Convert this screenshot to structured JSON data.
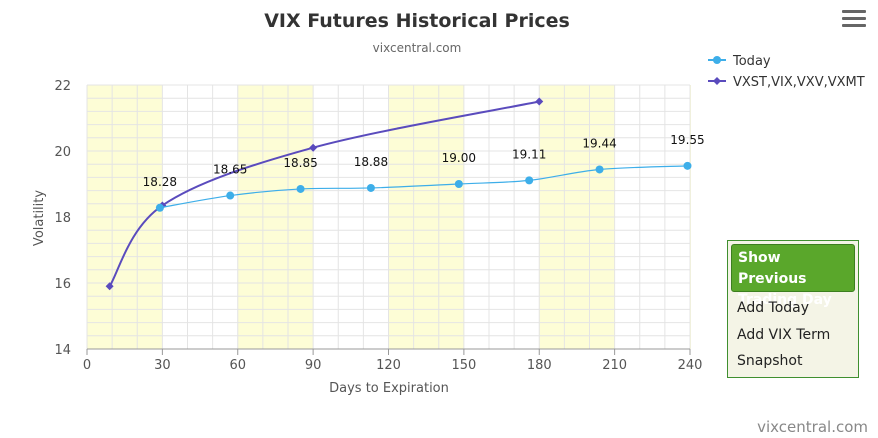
{
  "chart_data": {
    "type": "line",
    "title": "VIX Futures Historical Prices",
    "subtitle": "vixcentral.com",
    "xlabel": "Days to Expiration",
    "ylabel": "Volatility",
    "xlim": [
      0,
      240
    ],
    "ylim": [
      14,
      22
    ],
    "x_ticks": [
      0,
      30,
      60,
      90,
      120,
      150,
      180,
      210,
      240
    ],
    "y_ticks": [
      14,
      16,
      18,
      20,
      22
    ],
    "grid": true,
    "legend_position": "top-right",
    "shaded_bands": [
      [
        0,
        30
      ],
      [
        60,
        90
      ],
      [
        120,
        150
      ],
      [
        180,
        210
      ],
      [
        240,
        241
      ]
    ],
    "series": [
      {
        "name": "Today",
        "color": "#3daee9",
        "marker": "circle",
        "points": [
          {
            "x": 29,
            "y": 18.28,
            "label": "18.28"
          },
          {
            "x": 57,
            "y": 18.65,
            "label": "18.65"
          },
          {
            "x": 85,
            "y": 18.85,
            "label": "18.85"
          },
          {
            "x": 113,
            "y": 18.88,
            "label": "18.88"
          },
          {
            "x": 148,
            "y": 19.0,
            "label": "19.00"
          },
          {
            "x": 176,
            "y": 19.11,
            "label": "19.11"
          },
          {
            "x": 204,
            "y": 19.44,
            "label": "19.44"
          },
          {
            "x": 239,
            "y": 19.55,
            "label": "19.55"
          }
        ]
      },
      {
        "name": "VXST,VIX,VXV,VXMT",
        "color": "#5a4bbd",
        "marker": "diamond",
        "points": [
          {
            "x": 9,
            "y": 15.9
          },
          {
            "x": 30,
            "y": 18.35
          },
          {
            "x": 90,
            "y": 20.1
          },
          {
            "x": 180,
            "y": 21.5
          }
        ]
      }
    ]
  },
  "panel": {
    "prev_button": "Show Previous Trading Day",
    "add_today": "Add Today",
    "add_vix_term": "Add VIX Term",
    "snapshot": "Snapshot"
  },
  "footer": {
    "credit": "vixcentral.com"
  },
  "colors": {
    "band": "#fdfdd6",
    "grid": "#e4e4e4",
    "axis": "#cccccc",
    "panel_border": "#3f8f2f",
    "button_green": "#5aa72b"
  },
  "icons": {
    "menu": "hamburger-menu-icon"
  }
}
